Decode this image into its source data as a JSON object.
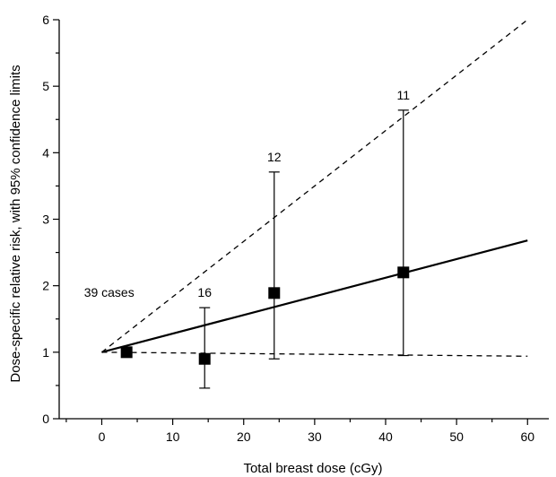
{
  "chart_data": {
    "type": "scatter",
    "title": "",
    "xlabel": "Total breast dose (cGy)",
    "ylabel": "Dose-specific relative risk, with 95% confidence limits",
    "xlim": [
      -6,
      63
    ],
    "ylim": [
      0,
      6
    ],
    "x_ticks": [
      0,
      10,
      20,
      30,
      40,
      50,
      60
    ],
    "y_ticks": [
      0,
      1,
      2,
      3,
      4,
      5,
      6
    ],
    "grid": false,
    "legend": "none",
    "points": [
      {
        "x": 3.5,
        "y": 1.0,
        "lower": null,
        "upper": null,
        "cases": "39 cases"
      },
      {
        "x": 14.5,
        "y": 0.9,
        "lower": 0.46,
        "upper": 1.67,
        "cases": "16"
      },
      {
        "x": 24.3,
        "y": 1.89,
        "lower": 0.9,
        "upper": 3.71,
        "cases": "12"
      },
      {
        "x": 42.5,
        "y": 2.2,
        "lower": 0.95,
        "upper": 4.64,
        "cases": "11"
      }
    ],
    "lines": [
      {
        "style": "solid",
        "x": [
          0,
          60
        ],
        "y": [
          1.0,
          2.68
        ]
      },
      {
        "style": "dashed",
        "x": [
          0,
          60
        ],
        "y": [
          1.0,
          6.0
        ]
      },
      {
        "style": "dashed",
        "x": [
          0,
          60
        ],
        "y": [
          1.0,
          0.94
        ]
      }
    ]
  }
}
